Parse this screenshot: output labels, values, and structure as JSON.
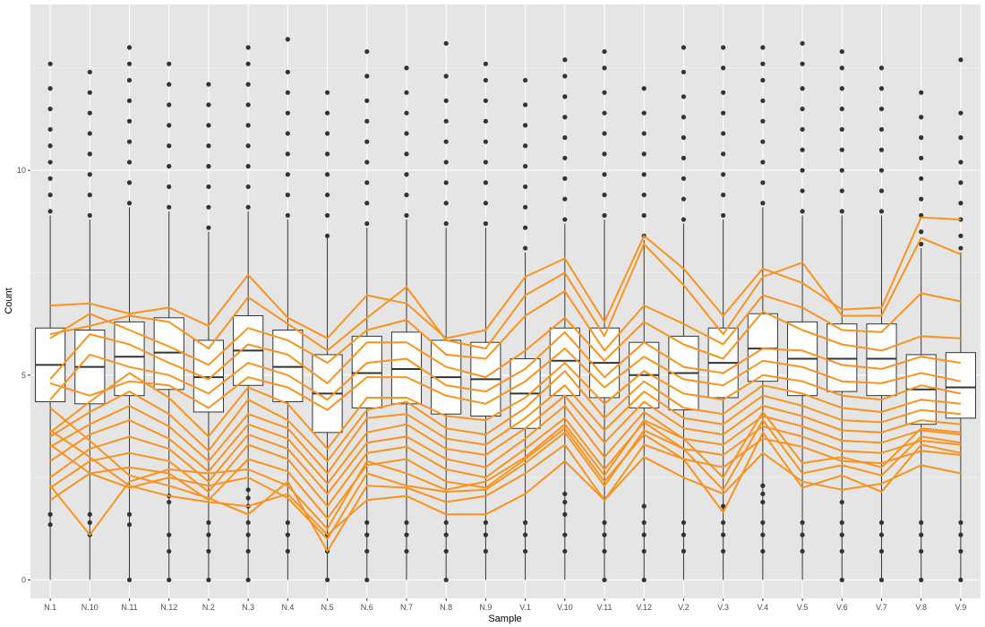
{
  "chart_data": {
    "type": "box",
    "xlabel": "Sample",
    "ylabel": "Count",
    "ylim": [
      -0.45,
      14.05
    ],
    "yticks": [
      0,
      5,
      10
    ],
    "grid": true,
    "legend": "none",
    "colors": {
      "panel": "#e5e5e5",
      "grid_major": "#ffffff",
      "box_fill": "#ffffff",
      "box_line": "#333333",
      "outlier": "#333333",
      "lines": "#f7931e"
    },
    "categories": [
      "N.1",
      "N.10",
      "N.11",
      "N.12",
      "N.2",
      "N.3",
      "N.4",
      "N.5",
      "N.6",
      "N.7",
      "N.8",
      "N.9",
      "V.1",
      "V.10",
      "V.11",
      "V.12",
      "V.2",
      "V.3",
      "V.4",
      "V.5",
      "V.6",
      "V.7",
      "V.8",
      "V.9"
    ],
    "boxes": [
      {
        "low": 0.0,
        "q1": 4.35,
        "median": 5.25,
        "q3": 6.15,
        "high": 8.9,
        "outliers": [
          1.35,
          1.6,
          9.0,
          9.4,
          9.8,
          10.2,
          10.6,
          11.0,
          11.5,
          12.0,
          12.6
        ]
      },
      {
        "low": 0.0,
        "q1": 4.3,
        "median": 5.2,
        "q3": 6.1,
        "high": 8.8,
        "outliers": [
          1.1,
          1.4,
          1.6,
          8.9,
          9.4,
          9.9,
          10.4,
          10.9,
          11.4,
          11.9,
          12.4
        ]
      },
      {
        "low": 0.0,
        "q1": 4.5,
        "median": 5.45,
        "q3": 6.3,
        "high": 9.1,
        "outliers": [
          0.0,
          1.35,
          1.6,
          9.2,
          9.7,
          10.2,
          10.7,
          11.2,
          11.7,
          12.2,
          12.6,
          13.0
        ]
      },
      {
        "low": 0.0,
        "q1": 4.65,
        "median": 5.55,
        "q3": 6.4,
        "high": 9.0,
        "outliers": [
          0.0,
          0.7,
          1.1,
          1.9,
          2.05,
          9.1,
          9.6,
          10.1,
          10.6,
          11.1,
          11.6,
          12.1,
          12.6
        ]
      },
      {
        "low": 0.0,
        "q1": 4.1,
        "median": 4.95,
        "q3": 5.85,
        "high": 8.5,
        "outliers": [
          0.0,
          0.7,
          1.1,
          1.4,
          8.6,
          9.1,
          9.6,
          10.1,
          10.6,
          11.1,
          11.6,
          12.1
        ]
      },
      {
        "low": 0.0,
        "q1": 4.75,
        "median": 5.6,
        "q3": 6.45,
        "high": 9.0,
        "outliers": [
          0.0,
          0.7,
          1.1,
          1.4,
          1.8,
          2.0,
          2.2,
          9.1,
          9.6,
          10.1,
          10.6,
          11.1,
          11.6,
          12.1,
          12.6,
          13.0
        ]
      },
      {
        "low": 0.0,
        "q1": 4.35,
        "median": 5.2,
        "q3": 6.1,
        "high": 8.8,
        "outliers": [
          0.7,
          1.1,
          1.4,
          8.9,
          9.4,
          9.9,
          10.4,
          10.9,
          11.4,
          11.9,
          12.4,
          13.2
        ]
      },
      {
        "low": 0.0,
        "q1": 3.6,
        "median": 4.55,
        "q3": 5.5,
        "high": 8.35,
        "outliers": [
          0.0,
          0.7,
          1.1,
          8.4,
          8.9,
          9.4,
          9.9,
          10.4,
          10.9,
          11.4,
          11.9
        ]
      },
      {
        "low": 0.0,
        "q1": 4.2,
        "median": 5.05,
        "q3": 5.95,
        "high": 8.6,
        "outliers": [
          0.0,
          0.7,
          1.1,
          1.4,
          8.7,
          9.2,
          9.7,
          10.2,
          10.7,
          11.2,
          11.7,
          12.3,
          12.9
        ]
      },
      {
        "low": 0.0,
        "q1": 4.3,
        "median": 5.15,
        "q3": 6.05,
        "high": 8.8,
        "outliers": [
          0.7,
          1.1,
          1.4,
          8.9,
          9.4,
          9.9,
          10.4,
          10.9,
          11.4,
          11.9,
          12.5
        ]
      },
      {
        "low": 0.0,
        "q1": 4.05,
        "median": 4.95,
        "q3": 5.85,
        "high": 8.6,
        "outliers": [
          0.0,
          0.7,
          1.1,
          1.4,
          8.7,
          9.2,
          9.7,
          10.2,
          10.7,
          11.2,
          11.7,
          12.3,
          13.1
        ]
      },
      {
        "low": 0.0,
        "q1": 4.0,
        "median": 4.9,
        "q3": 5.8,
        "high": 8.6,
        "outliers": [
          0.7,
          1.1,
          1.4,
          8.7,
          9.2,
          9.7,
          10.2,
          10.7,
          11.2,
          11.7,
          12.2,
          12.6
        ]
      },
      {
        "low": 0.0,
        "q1": 3.7,
        "median": 4.55,
        "q3": 5.4,
        "high": 8.0,
        "outliers": [
          0.7,
          1.1,
          1.4,
          8.1,
          8.6,
          9.1,
          9.6,
          10.1,
          10.6,
          11.1,
          11.6,
          12.2
        ]
      },
      {
        "low": 0.0,
        "q1": 4.5,
        "median": 5.35,
        "q3": 6.15,
        "high": 8.7,
        "outliers": [
          0.7,
          1.1,
          1.6,
          1.9,
          2.1,
          8.8,
          9.3,
          9.8,
          10.3,
          10.8,
          11.3,
          11.8,
          12.3,
          12.7
        ]
      },
      {
        "low": 0.0,
        "q1": 4.45,
        "median": 5.3,
        "q3": 6.15,
        "high": 8.8,
        "outliers": [
          0.0,
          0.7,
          1.1,
          1.4,
          8.9,
          9.4,
          9.9,
          10.4,
          10.9,
          11.4,
          11.9,
          12.5,
          12.9
        ]
      },
      {
        "low": 0.0,
        "q1": 4.2,
        "median": 5.0,
        "q3": 5.8,
        "high": 8.3,
        "outliers": [
          0.0,
          0.7,
          1.1,
          1.4,
          1.8,
          8.4,
          8.9,
          9.4,
          9.9,
          10.4,
          10.9,
          11.4,
          12.0
        ]
      },
      {
        "low": 0.0,
        "q1": 4.15,
        "median": 5.05,
        "q3": 5.95,
        "high": 8.7,
        "outliers": [
          0.7,
          1.1,
          1.4,
          8.8,
          9.3,
          9.8,
          10.3,
          10.8,
          11.3,
          11.8,
          12.4,
          13.0
        ]
      },
      {
        "low": 0.0,
        "q1": 4.45,
        "median": 5.3,
        "q3": 6.15,
        "high": 8.8,
        "outliers": [
          0.7,
          1.1,
          1.4,
          1.8,
          8.9,
          9.4,
          9.9,
          10.4,
          10.9,
          11.4,
          11.9,
          12.5,
          13.0
        ]
      },
      {
        "low": 0.0,
        "q1": 4.85,
        "median": 5.65,
        "q3": 6.5,
        "high": 9.1,
        "outliers": [
          0.7,
          1.1,
          1.4,
          1.9,
          2.1,
          2.3,
          9.2,
          9.7,
          10.2,
          10.7,
          11.2,
          11.7,
          12.2,
          12.6,
          13.0
        ]
      },
      {
        "low": 0.0,
        "q1": 4.5,
        "median": 5.4,
        "q3": 6.3,
        "high": 8.9,
        "outliers": [
          0.7,
          1.1,
          1.4,
          9.0,
          9.5,
          10.0,
          10.5,
          11.0,
          11.5,
          12.0,
          12.6,
          13.1
        ]
      },
      {
        "low": 0.0,
        "q1": 4.6,
        "median": 5.4,
        "q3": 6.25,
        "high": 8.9,
        "outliers": [
          0.0,
          0.7,
          1.1,
          1.4,
          1.9,
          9.0,
          9.5,
          10.0,
          10.5,
          11.0,
          11.5,
          12.0,
          12.5,
          12.9
        ]
      },
      {
        "low": 0.0,
        "q1": 4.5,
        "median": 5.4,
        "q3": 6.25,
        "high": 8.9,
        "outliers": [
          0.0,
          0.7,
          1.1,
          1.4,
          9.0,
          9.5,
          10.0,
          10.5,
          11.0,
          11.5,
          12.0,
          12.5
        ]
      },
      {
        "low": 0.0,
        "q1": 3.8,
        "median": 4.65,
        "q3": 5.5,
        "high": 8.1,
        "outliers": [
          0.0,
          0.7,
          1.1,
          1.4,
          8.2,
          8.5,
          8.9,
          9.3,
          9.8,
          10.3,
          10.8,
          11.3,
          11.9
        ]
      },
      {
        "low": 0.0,
        "q1": 3.95,
        "median": 4.7,
        "q3": 5.55,
        "high": 8.0,
        "outliers": [
          0.0,
          0.7,
          1.1,
          1.4,
          8.1,
          8.4,
          8.8,
          9.2,
          9.7,
          10.2,
          10.8,
          11.4,
          12.7
        ]
      }
    ],
    "series": [
      {
        "values": [
          6.7,
          6.75,
          6.5,
          6.65,
          6.2,
          7.45,
          6.4,
          5.9,
          6.95,
          6.75,
          5.9,
          6.1,
          7.4,
          7.85,
          6.3,
          8.4,
          7.6,
          6.45,
          7.6,
          7.25,
          6.6,
          6.65,
          8.85,
          8.8
        ]
      },
      {
        "values": [
          6.0,
          6.2,
          6.45,
          6.3,
          5.65,
          6.9,
          6.25,
          5.6,
          6.4,
          7.15,
          5.85,
          5.65,
          6.95,
          7.5,
          5.95,
          8.2,
          7.2,
          6.0,
          7.4,
          7.75,
          6.45,
          6.45,
          8.35,
          7.95
        ]
      },
      {
        "values": [
          5.9,
          6.5,
          6.1,
          5.7,
          5.25,
          6.15,
          5.85,
          5.3,
          6.1,
          6.35,
          5.5,
          5.4,
          6.45,
          7.05,
          5.6,
          6.7,
          6.25,
          5.75,
          6.95,
          6.65,
          6.1,
          6.05,
          7.0,
          6.8
        ]
      },
      {
        "values": [
          4.9,
          6.0,
          5.75,
          5.3,
          4.9,
          5.75,
          5.5,
          4.8,
          5.8,
          5.8,
          5.2,
          4.95,
          5.6,
          6.4,
          5.35,
          6.3,
          5.75,
          5.4,
          6.55,
          6.1,
          5.75,
          5.6,
          5.95,
          5.9
        ]
      },
      {
        "values": [
          4.4,
          5.5,
          5.2,
          5.0,
          4.55,
          5.3,
          5.0,
          4.4,
          5.3,
          5.4,
          4.75,
          4.6,
          5.15,
          6.05,
          4.95,
          5.8,
          5.2,
          5.05,
          5.65,
          5.6,
          5.25,
          5.15,
          5.45,
          5.3
        ]
      },
      {
        "values": [
          4.8,
          4.5,
          4.85,
          4.75,
          4.2,
          4.95,
          4.7,
          4.15,
          4.95,
          4.95,
          4.5,
          4.3,
          4.85,
          5.65,
          4.7,
          5.45,
          4.9,
          4.75,
          5.35,
          5.2,
          4.85,
          4.8,
          5.05,
          4.85
        ]
      },
      {
        "values": [
          3.6,
          4.35,
          5.05,
          4.45,
          3.5,
          4.7,
          4.3,
          3.2,
          4.45,
          4.45,
          4.0,
          3.9,
          4.45,
          5.3,
          4.3,
          5.1,
          4.55,
          4.4,
          5.0,
          4.85,
          4.5,
          4.4,
          4.75,
          4.55
        ]
      },
      {
        "values": [
          3.5,
          4.1,
          4.6,
          4.05,
          3.15,
          4.4,
          3.9,
          2.9,
          4.15,
          4.35,
          3.7,
          3.55,
          4.2,
          5.1,
          3.95,
          4.85,
          4.2,
          4.05,
          4.75,
          4.55,
          4.2,
          4.1,
          4.4,
          4.3
        ]
      },
      {
        "values": [
          3.25,
          3.8,
          4.25,
          3.75,
          2.9,
          4.05,
          3.7,
          2.6,
          3.95,
          4.05,
          3.45,
          3.3,
          3.95,
          4.75,
          3.65,
          4.6,
          3.95,
          3.8,
          4.5,
          4.25,
          3.9,
          3.85,
          4.15,
          4.05
        ]
      },
      {
        "values": [
          2.9,
          3.55,
          3.9,
          3.45,
          2.65,
          3.8,
          3.45,
          2.35,
          3.6,
          3.8,
          3.2,
          3.05,
          3.7,
          4.5,
          3.35,
          4.35,
          3.7,
          3.55,
          4.25,
          4.0,
          3.65,
          3.6,
          3.9,
          3.8
        ]
      },
      {
        "values": [
          2.5,
          3.2,
          3.5,
          3.2,
          2.4,
          3.55,
          3.2,
          2.1,
          3.35,
          3.5,
          2.95,
          2.75,
          3.45,
          4.25,
          3.0,
          4.1,
          3.45,
          3.3,
          4.0,
          3.75,
          3.4,
          3.35,
          3.65,
          3.55
        ]
      },
      {
        "values": [
          2.25,
          2.9,
          3.1,
          2.9,
          2.15,
          3.3,
          2.95,
          1.8,
          3.1,
          3.25,
          2.7,
          2.5,
          3.2,
          3.95,
          2.7,
          3.85,
          3.2,
          3.05,
          3.75,
          3.5,
          3.15,
          3.1,
          3.4,
          3.3
        ]
      },
      {
        "values": [
          1.95,
          2.6,
          2.75,
          2.6,
          1.95,
          2.95,
          2.65,
          1.5,
          2.8,
          2.95,
          2.4,
          2.25,
          2.95,
          3.7,
          2.4,
          3.55,
          2.95,
          2.75,
          3.45,
          3.25,
          2.9,
          2.85,
          3.15,
          3.05
        ]
      },
      {
        "values": [
          3.65,
          3.0,
          2.3,
          2.05,
          1.9,
          1.8,
          2.1,
          1.1,
          1.95,
          2.05,
          1.6,
          1.6,
          2.1,
          2.9,
          1.95,
          3.0,
          2.5,
          2.1,
          3.1,
          2.4,
          2.2,
          2.35,
          2.8,
          2.6
        ]
      },
      {
        "values": [
          4.2,
          3.4,
          2.55,
          2.3,
          2.0,
          1.6,
          2.4,
          0.7,
          2.3,
          2.25,
          1.9,
          2.05,
          2.6,
          3.3,
          1.95,
          3.3,
          2.95,
          1.65,
          3.6,
          2.25,
          2.55,
          2.15,
          3.3,
          3.1
        ]
      },
      {
        "values": [
          3.3,
          2.6,
          2.25,
          2.5,
          2.3,
          2.5,
          2.0,
          1.0,
          2.6,
          2.3,
          2.15,
          2.2,
          2.85,
          3.6,
          2.3,
          3.65,
          3.2,
          2.2,
          3.9,
          2.6,
          2.8,
          2.55,
          3.5,
          3.35
        ]
      },
      {
        "values": [
          2.3,
          1.1,
          2.4,
          2.7,
          2.6,
          2.7,
          2.3,
          1.25,
          2.9,
          2.6,
          2.2,
          2.4,
          3.0,
          3.8,
          2.55,
          3.9,
          3.45,
          2.5,
          4.1,
          2.85,
          3.0,
          2.75,
          3.7,
          3.6
        ]
      }
    ]
  }
}
